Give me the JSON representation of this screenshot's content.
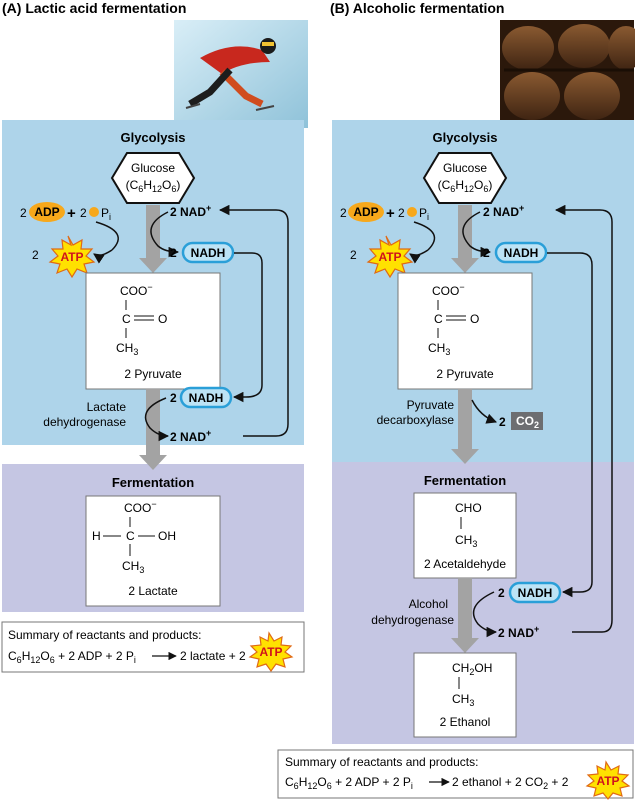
{
  "panel_a": {
    "title": "(A)  Lactic acid fermentation",
    "glycolysis_label": "Glycolysis",
    "fermentation_label": "Fermentation",
    "glucose": "Glucose",
    "glucose_formula": {
      "c": "(C",
      "c_sub": "6",
      "h": "H",
      "h_sub": "12",
      "o": "O",
      "o_sub": "6",
      "close": ")"
    },
    "adp_coef": "2",
    "adp": "ADP",
    "plus": "+",
    "pi_coef": "2",
    "pi": "P",
    "pi_sub": "i",
    "atp_coef": "2",
    "atp": "ATP",
    "nadplus_top": "2 NAD",
    "nadplus_sup": "+",
    "nadh_coef": "2",
    "nadh": "NADH",
    "pyruvate": {
      "coo": "COO",
      "coo_sup": "−",
      "c": "C",
      "o": "O",
      "ch": "CH",
      "ch_sub": "3",
      "name": "2 Pyruvate"
    },
    "enzyme_line1": "Lactate",
    "enzyme_line2": "dehydrogenase",
    "nadh2_coef": "2",
    "nadh2": "NADH",
    "nadplus_bottom": "2 NAD",
    "lactate": {
      "coo": "COO",
      "coo_sup": "−",
      "h": "H",
      "c": "C",
      "oh": "OH",
      "ch": "CH",
      "ch_sub": "3",
      "name": "2 Lactate"
    },
    "summary_title": "Summary of reactants and products:",
    "summary": {
      "c": "C",
      "c_sub": "6",
      "h": "H",
      "h_sub": "12",
      "o": "O",
      "o_sub": "6",
      "rest1": " + 2 ADP + 2 P",
      "pi_sub": "i",
      "arrow_text": "2 lactate + 2",
      "atp": "ATP"
    }
  },
  "panel_b": {
    "title": "(B)  Alcoholic fermentation",
    "glycolysis_label": "Glycolysis",
    "fermentation_label": "Fermentation",
    "glucose": "Glucose",
    "glucose_formula": {
      "c": "(C",
      "c_sub": "6",
      "h": "H",
      "h_sub": "12",
      "o": "O",
      "o_sub": "6",
      "close": ")"
    },
    "adp_coef": "2",
    "adp": "ADP",
    "plus": "+",
    "pi_coef": "2",
    "pi": "P",
    "pi_sub": "i",
    "atp_coef": "2",
    "atp": "ATP",
    "nadplus_top": "2 NAD",
    "nadplus_sup": "+",
    "nadh_coef": "2",
    "nadh": "NADH",
    "pyruvate": {
      "coo": "COO",
      "coo_sup": "−",
      "c": "C",
      "o": "O",
      "ch": "CH",
      "ch_sub": "3",
      "name": "2 Pyruvate"
    },
    "enzyme1_line1": "Pyruvate",
    "enzyme1_line2": "decarboxylase",
    "co2_coef": "2",
    "co2": "CO",
    "co2_sub": "2",
    "acetaldehyde": {
      "cho": "CHO",
      "ch": "CH",
      "ch_sub": "3",
      "name": "2 Acetaldehyde"
    },
    "enzyme2_line1": "Alcohol",
    "enzyme2_line2": "dehydrogenase",
    "nadh2_coef": "2",
    "nadh2": "NADH",
    "nadplus_bottom": "2 NAD",
    "ethanol": {
      "ch2": "CH",
      "ch2_sub": "2",
      "oh": "OH",
      "ch": "CH",
      "ch_sub": "3",
      "name": "2 Ethanol"
    },
    "summary_title": "Summary of reactants and products:",
    "summary": {
      "c": "C",
      "c_sub": "6",
      "h": "H",
      "h_sub": "12",
      "o": "O",
      "o_sub": "6",
      "rest1": " + 2 ADP + 2 P",
      "pi_sub": "i",
      "arrow_text": "2 ethanol + 2 CO",
      "co2_sub": "2",
      "plus2": " + 2",
      "atp": "ATP"
    }
  },
  "colors": {
    "glycolysis_bg": "#aed4ea",
    "fermentation_bg": "#c5c6e3",
    "adp_fill": "#f7a81b",
    "atp_fill": "#ffe100",
    "atp_text": "#d0121b",
    "nadh_fill": "#bde3f5",
    "nadh_stroke": "#2a9fd8",
    "arrow_gray": "#a3a3a3",
    "co2_fill": "#6d6e71"
  }
}
